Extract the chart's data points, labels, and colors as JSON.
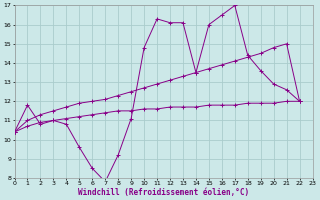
{
  "xlabel": "Windchill (Refroidissement éolien,°C)",
  "background_color": "#cce8e8",
  "grid_color": "#aacccc",
  "line_color": "#880088",
  "x_min": 0,
  "x_max": 23,
  "y_min": 8,
  "y_max": 17,
  "series1": [
    10.4,
    11.8,
    10.8,
    11.0,
    10.8,
    9.6,
    8.5,
    7.8,
    9.2,
    11.1,
    14.8,
    16.3,
    16.1,
    16.1,
    13.5,
    16.0,
    16.5,
    17.0,
    14.4,
    13.6,
    12.9,
    12.6,
    12.0
  ],
  "series2": [
    10.4,
    11.0,
    11.3,
    11.5,
    11.7,
    11.9,
    12.0,
    12.1,
    12.3,
    12.5,
    12.7,
    12.9,
    13.1,
    13.3,
    13.5,
    13.7,
    13.9,
    14.1,
    14.3,
    14.5,
    14.8,
    15.0,
    12.0
  ],
  "series3": [
    10.4,
    10.7,
    10.9,
    11.0,
    11.1,
    11.2,
    11.3,
    11.4,
    11.5,
    11.5,
    11.6,
    11.6,
    11.7,
    11.7,
    11.7,
    11.8,
    11.8,
    11.8,
    11.9,
    11.9,
    11.9,
    12.0,
    12.0
  ],
  "x_ticks": [
    0,
    1,
    2,
    3,
    4,
    5,
    6,
    7,
    8,
    9,
    10,
    11,
    12,
    13,
    14,
    15,
    16,
    17,
    18,
    19,
    20,
    21,
    22,
    23
  ],
  "y_ticks": [
    8,
    9,
    10,
    11,
    12,
    13,
    14,
    15,
    16,
    17
  ],
  "tick_fontsize": 4.5,
  "xlabel_fontsize": 5.5
}
